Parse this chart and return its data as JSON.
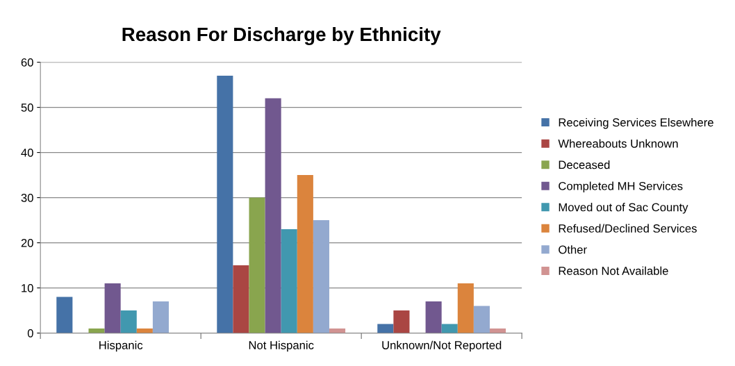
{
  "chart_data": {
    "type": "bar",
    "title": "Reason For Discharge by Ethnicity",
    "categories": [
      "Hispanic",
      "Not Hispanic",
      "Unknown/Not Reported"
    ],
    "series": [
      {
        "name": "Receiving Services Elsewhere",
        "color": "#4572a7",
        "values": [
          8,
          57,
          2
        ]
      },
      {
        "name": "Whereabouts Unknown",
        "color": "#aa4643",
        "values": [
          0,
          15,
          5
        ]
      },
      {
        "name": "Deceased",
        "color": "#89a54e",
        "values": [
          1,
          30,
          0
        ]
      },
      {
        "name": "Completed MH Services",
        "color": "#71588f",
        "values": [
          11,
          52,
          7
        ]
      },
      {
        "name": "Moved out of Sac County",
        "color": "#4198af",
        "values": [
          5,
          23,
          2
        ]
      },
      {
        "name": "Refused/Declined Services",
        "color": "#db843d",
        "values": [
          1,
          35,
          11
        ]
      },
      {
        "name": "Other",
        "color": "#93a9cf",
        "values": [
          7,
          25,
          6
        ]
      },
      {
        "name": "Reason Not Available",
        "color": "#d19392",
        "values": [
          0,
          1,
          1
        ]
      }
    ],
    "ylim": [
      0,
      60
    ],
    "yticks": [
      0,
      10,
      20,
      30,
      40,
      50,
      60
    ],
    "grid": "y",
    "legend": "right"
  }
}
